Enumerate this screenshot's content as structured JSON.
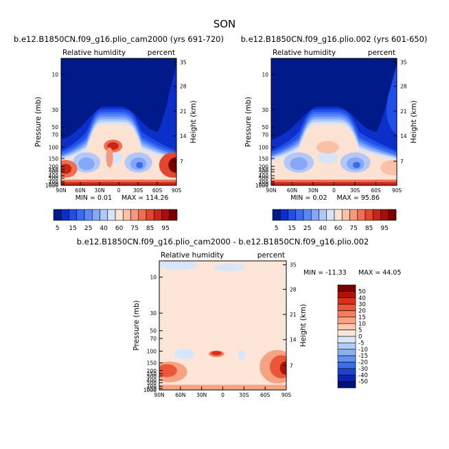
{
  "page_title": "SON",
  "panels": [
    {
      "title": "b.e12.B1850CN.f09_g16.plio_cam2000 (yrs 691-720)",
      "left_label": "Relative humidity",
      "right_label": "percent",
      "min_text": "MIN =     0.01",
      "max_text": "MAX = 114.26"
    },
    {
      "title": "b.e12.B1850CN.f09_g16.plio.002 (yrs 601-650)",
      "left_label": "Relative humidity",
      "right_label": "percent",
      "min_text": "MIN =     0.02",
      "max_text": "MAX =  95.86"
    },
    {
      "title": "b.e12.B1850CN.f09_g16.plio_cam2000 - b.e12.B1850CN.f09_g16.plio.002",
      "left_label": "Relative humidity",
      "right_label": "percent",
      "min_text": "MIN = -11.33",
      "max_text": "MAX =   44.05"
    }
  ],
  "axis": {
    "ylabel_left": "Pressure (mb)",
    "ylabel_right": "Height (km)",
    "x_ticks": [
      "90N",
      "60N",
      "30N",
      "0",
      "30S",
      "60S",
      "90S"
    ],
    "p_ticks": [
      "10",
      "30",
      "50",
      "70",
      "100",
      "150",
      "200",
      "250",
      "300",
      "400",
      "500",
      "700",
      "850",
      "1000"
    ],
    "h_ticks": [
      "35",
      "28",
      "21",
      "14",
      "7"
    ]
  },
  "colorbar_rh": {
    "labels": [
      "5",
      "15",
      "25",
      "40",
      "60",
      "75",
      "85",
      "95"
    ],
    "colors": [
      "#001a8a",
      "#0b2fc8",
      "#1f4fe8",
      "#3a6cf2",
      "#5a88f5",
      "#84a8f7",
      "#b2c8f8",
      "#d8e4fa",
      "#fce2d2",
      "#f9c1a6",
      "#f59a7c",
      "#ef6f50",
      "#e24830",
      "#c82718",
      "#a80e0a",
      "#7a0000"
    ]
  },
  "colorbar_diff": {
    "labels": [
      "50",
      "40",
      "30",
      "20",
      "15",
      "10",
      "5",
      "0",
      "-5",
      "-10",
      "-15",
      "-20",
      "-30",
      "-40",
      "-50"
    ],
    "colors": [
      "#7a0000",
      "#b01208",
      "#d8301c",
      "#ec5638",
      "#f37d5c",
      "#f7a283",
      "#fbc7ae",
      "#fde6d8",
      "#d8e6fa",
      "#b3cbf6",
      "#8ab0f3",
      "#6091ef",
      "#3b6de6",
      "#1c43cf",
      "#0a26ae",
      "#00127a"
    ]
  },
  "chart_data": [
    {
      "type": "heatmap",
      "title": "b.e12.B1850CN.f09_g16.plio_cam2000 (yrs 691-720)",
      "xlabel": "",
      "ylabel": "Pressure (mb)",
      "ylabel_right": "Height (km)",
      "x": [
        "90N",
        "60N",
        "30N",
        "0",
        "30S",
        "60S",
        "90S"
      ],
      "pressure_levels_mb": [
        10,
        30,
        50,
        70,
        100,
        150,
        200,
        250,
        300,
        400,
        500,
        700,
        850,
        1000
      ],
      "colorbar": [
        5,
        15,
        25,
        40,
        60,
        75,
        85,
        95
      ],
      "min": 0.01,
      "max": 114.26
    },
    {
      "type": "heatmap",
      "title": "b.e12.B1850CN.f09_g16.plio.002 (yrs 601-650)",
      "xlabel": "",
      "ylabel": "Pressure (mb)",
      "ylabel_right": "Height (km)",
      "x": [
        "90N",
        "60N",
        "30N",
        "0",
        "30S",
        "60S",
        "90S"
      ],
      "pressure_levels_mb": [
        10,
        30,
        50,
        70,
        100,
        150,
        200,
        250,
        300,
        400,
        500,
        700,
        850,
        1000
      ],
      "colorbar": [
        5,
        15,
        25,
        40,
        60,
        75,
        85,
        95
      ],
      "min": 0.02,
      "max": 95.86
    },
    {
      "type": "heatmap",
      "title": "b.e12.B1850CN.f09_g16.plio_cam2000 - b.e12.B1850CN.f09_g16.plio.002",
      "xlabel": "",
      "ylabel": "Pressure (mb)",
      "ylabel_right": "Height (km)",
      "x": [
        "90N",
        "60N",
        "30N",
        "0",
        "30S",
        "60S",
        "90S"
      ],
      "pressure_levels_mb": [
        10,
        30,
        50,
        70,
        100,
        150,
        200,
        250,
        300,
        400,
        500,
        700,
        850,
        1000
      ],
      "colorbar": [
        50,
        40,
        30,
        20,
        15,
        10,
        5,
        0,
        -5,
        -10,
        -15,
        -20,
        -30,
        -40,
        -50
      ],
      "min": -11.33,
      "max": 44.05
    }
  ]
}
